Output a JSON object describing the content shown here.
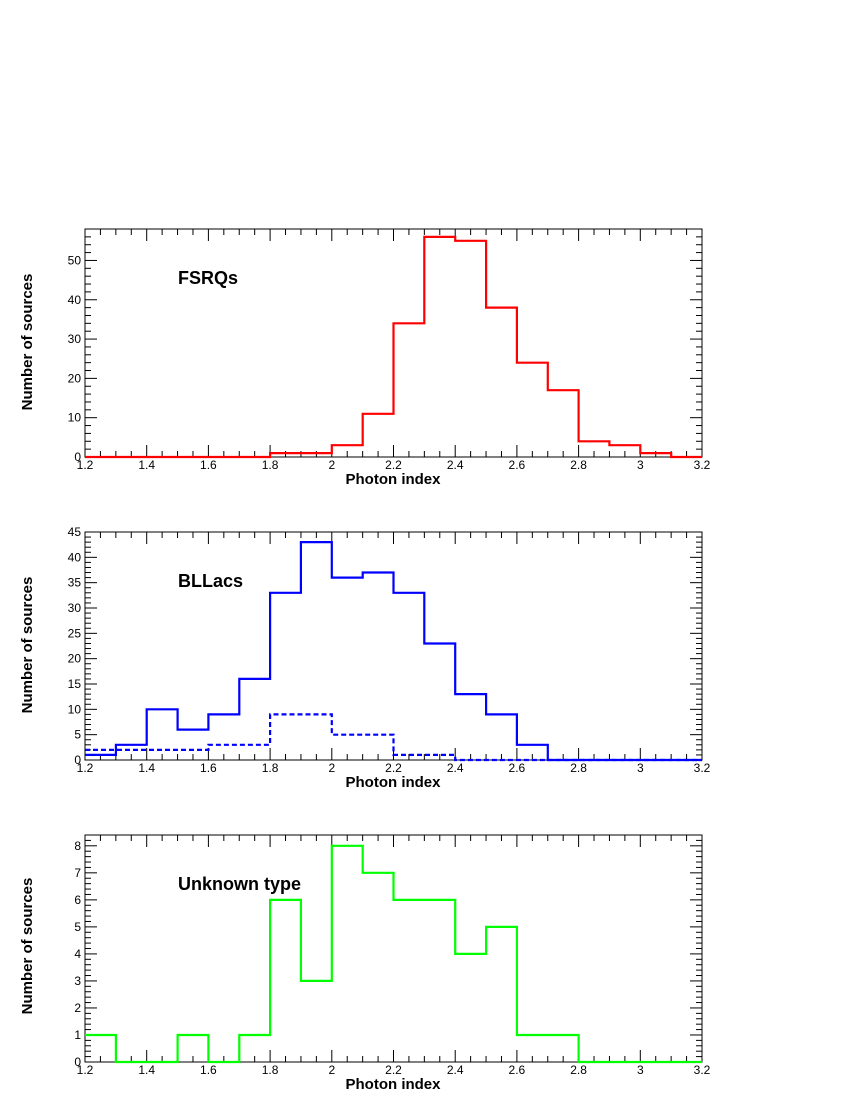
{
  "chart_data": [
    {
      "type": "histogram",
      "panel_label": "FSRQs",
      "xlabel": "Photon index",
      "ylabel": "Number of sources",
      "xlim": [
        1.2,
        3.2
      ],
      "ylim": [
        0,
        58
      ],
      "x_ticks": [
        "1.2",
        "1.4",
        "1.6",
        "1.8",
        "2",
        "2.2",
        "2.4",
        "2.6",
        "2.8",
        "3",
        "3.2"
      ],
      "y_ticks": [
        "0",
        "10",
        "20",
        "30",
        "40",
        "50"
      ],
      "bin_edges": [
        1.2,
        1.3,
        1.4,
        1.5,
        1.6,
        1.7,
        1.8,
        1.9,
        2.0,
        2.1,
        2.2,
        2.3,
        2.4,
        2.5,
        2.6,
        2.7,
        2.8,
        2.9,
        3.0,
        3.1,
        3.2
      ],
      "series": [
        {
          "values": [
            0,
            0,
            0,
            0,
            0,
            0,
            1,
            1,
            3,
            11,
            34,
            56,
            55,
            38,
            24,
            17,
            4,
            3,
            1,
            0
          ],
          "color": "#ff0000",
          "style": "solid"
        }
      ]
    },
    {
      "type": "histogram",
      "panel_label": "BLLacs",
      "xlabel": "Photon index",
      "ylabel": "Number of sources",
      "xlim": [
        1.2,
        3.2
      ],
      "ylim": [
        0,
        45
      ],
      "x_ticks": [
        "1.2",
        "1.4",
        "1.6",
        "1.8",
        "2",
        "2.2",
        "2.4",
        "2.6",
        "2.8",
        "3",
        "3.2"
      ],
      "y_ticks": [
        "0",
        "5",
        "10",
        "15",
        "20",
        "25",
        "30",
        "35",
        "40",
        "45"
      ],
      "bin_edges": [
        1.2,
        1.3,
        1.4,
        1.5,
        1.6,
        1.7,
        1.8,
        1.9,
        2.0,
        2.1,
        2.2,
        2.3,
        2.4,
        2.5,
        2.6,
        2.7,
        2.8,
        2.9,
        3.0,
        3.1,
        3.2
      ],
      "series": [
        {
          "values": [
            1,
            3,
            10,
            6,
            9,
            16,
            33,
            43,
            36,
            37,
            33,
            23,
            13,
            9,
            3,
            0,
            0,
            0,
            0,
            0
          ],
          "color": "#0000ff",
          "style": "solid"
        },
        {
          "values": [
            2,
            2,
            2,
            2,
            3,
            3,
            9,
            9,
            5,
            5,
            1,
            1,
            0,
            0,
            0,
            0,
            0,
            0,
            0,
            0
          ],
          "color": "#0000ff",
          "style": "dashed"
        }
      ]
    },
    {
      "type": "histogram",
      "panel_label": "Unknown type",
      "xlabel": "Photon index",
      "ylabel": "Number of sources",
      "xlim": [
        1.2,
        3.2
      ],
      "ylim": [
        0,
        8.4
      ],
      "x_ticks": [
        "1.2",
        "1.4",
        "1.6",
        "1.8",
        "2",
        "2.2",
        "2.4",
        "2.6",
        "2.8",
        "3",
        "3.2"
      ],
      "y_ticks": [
        "0",
        "1",
        "2",
        "3",
        "4",
        "5",
        "6",
        "7",
        "8"
      ],
      "bin_edges": [
        1.2,
        1.3,
        1.4,
        1.5,
        1.6,
        1.7,
        1.8,
        1.9,
        2.0,
        2.1,
        2.2,
        2.3,
        2.4,
        2.5,
        2.6,
        2.7,
        2.8,
        2.9,
        3.0,
        3.1,
        3.2
      ],
      "series": [
        {
          "values": [
            1,
            0,
            0,
            1,
            0,
            1,
            6,
            3,
            8,
            7,
            6,
            6,
            4,
            5,
            1,
            1,
            0,
            0,
            0,
            0
          ],
          "color": "#00ff00",
          "style": "solid"
        }
      ]
    }
  ]
}
